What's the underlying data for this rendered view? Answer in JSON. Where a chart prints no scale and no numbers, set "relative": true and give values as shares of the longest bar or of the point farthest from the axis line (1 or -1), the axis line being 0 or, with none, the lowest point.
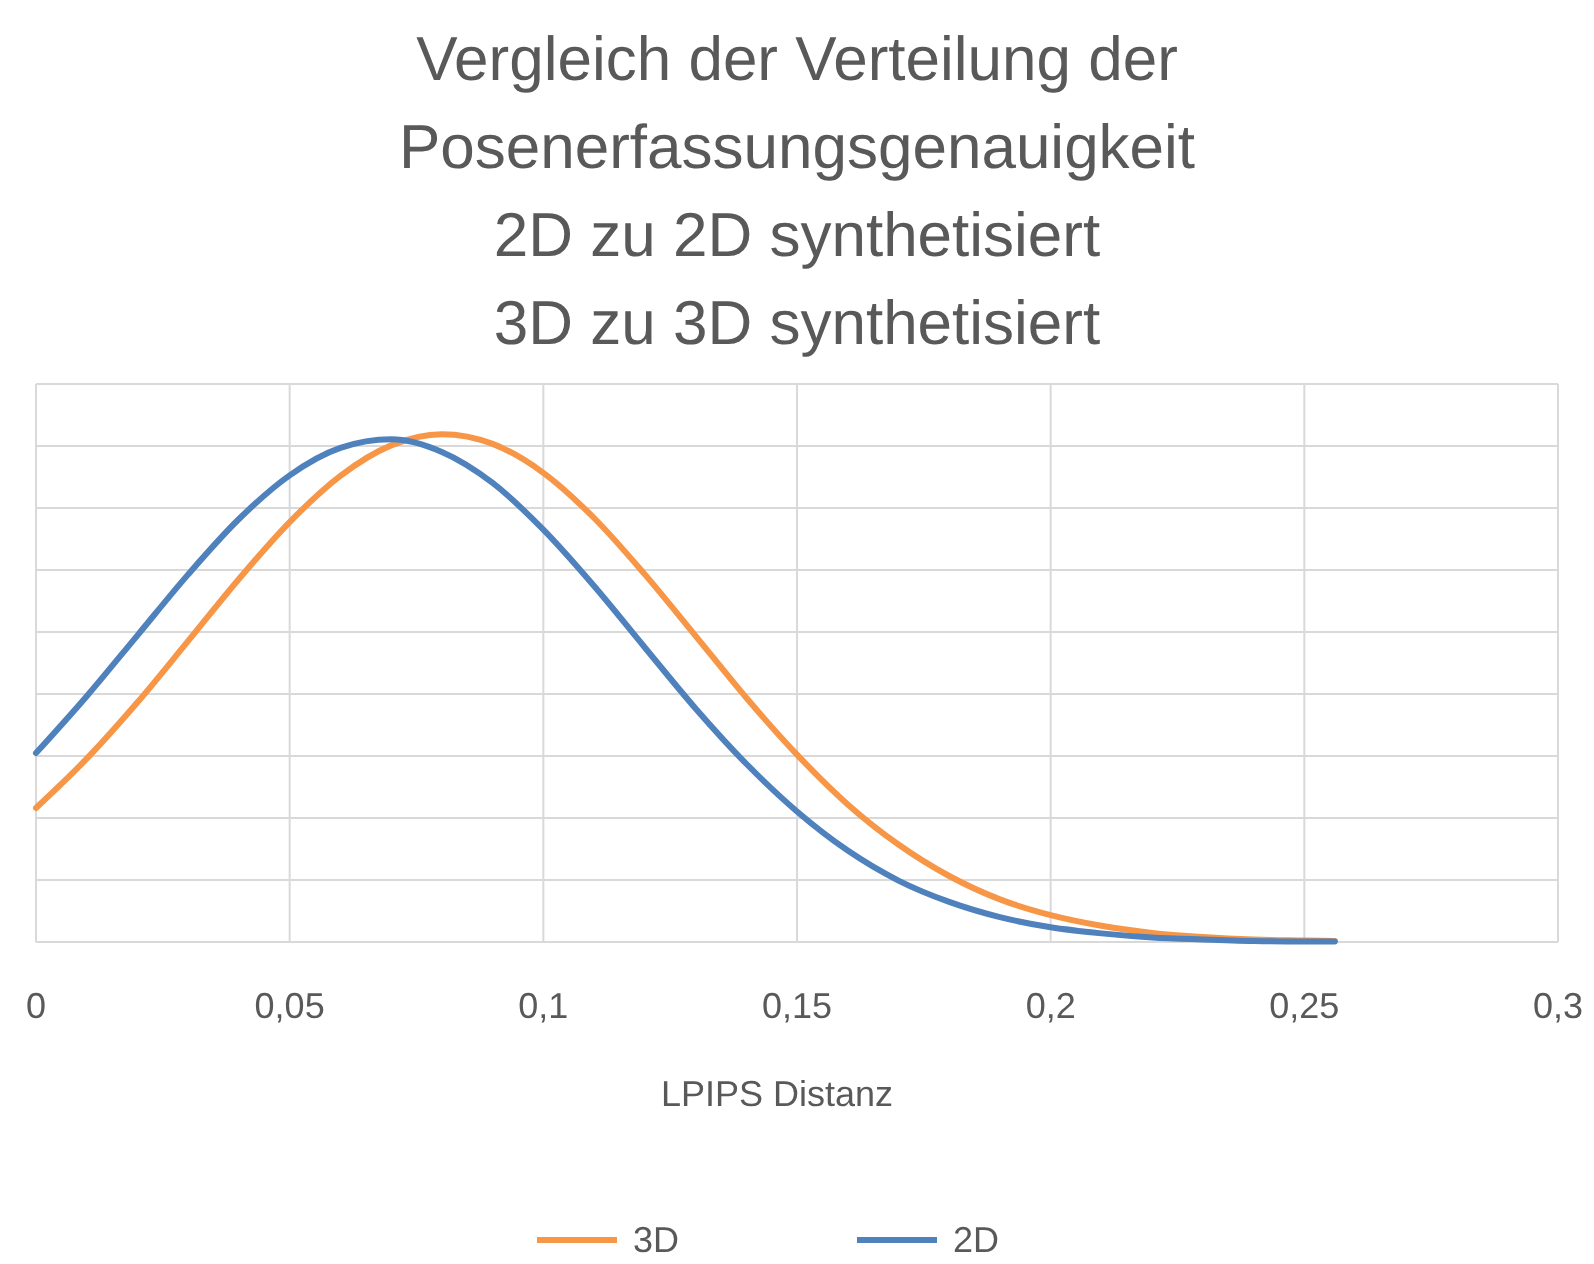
{
  "chart_data": {
    "type": "line",
    "title": "Vergleich der Verteilung der\nPosenerfassungsgenauigkeit\n2D zu 2D synthetisiert\n3D zu 3D synthetisiert",
    "xlabel": "LPIPS Distanz",
    "relative": true,
    "x": [
      0,
      0.01,
      0.02,
      0.03,
      0.04,
      0.05,
      0.06,
      0.07,
      0.08,
      0.09,
      0.1,
      0.11,
      0.12,
      0.13,
      0.14,
      0.15,
      0.16,
      0.17,
      0.18,
      0.19,
      0.2,
      0.21,
      0.22,
      0.23,
      0.24,
      0.25,
      0.256
    ],
    "series": [
      {
        "name": "3D",
        "color": "#f79646",
        "values": [
          0.264,
          0.361,
          0.472,
          0.593,
          0.715,
          0.827,
          0.918,
          0.978,
          1,
          0.981,
          0.924,
          0.835,
          0.724,
          0.603,
          0.481,
          0.369,
          0.271,
          0.192,
          0.13,
          0.084,
          0.053,
          0.032,
          0.018,
          0.01,
          0.005,
          0.003,
          0.002
        ]
      },
      {
        "name": "2D",
        "color": "#4f81bd",
        "values": [
          0.372,
          0.484,
          0.604,
          0.724,
          0.833,
          0.919,
          0.973,
          0.99,
          0.965,
          0.904,
          0.812,
          0.701,
          0.58,
          0.46,
          0.351,
          0.257,
          0.18,
          0.121,
          0.079,
          0.049,
          0.029,
          0.017,
          0.009,
          0.005,
          0.002,
          0.001,
          0.001
        ]
      }
    ],
    "xlim": [
      0,
      0.3
    ],
    "xticks": [
      {
        "value": 0,
        "label": "0"
      },
      {
        "value": 0.05,
        "label": "0,05"
      },
      {
        "value": 0.1,
        "label": "0,1"
      },
      {
        "value": 0.15,
        "label": "0,15"
      },
      {
        "value": 0.2,
        "label": "0,2"
      },
      {
        "value": 0.25,
        "label": "0,25"
      },
      {
        "value": 0.3,
        "label": "0,3"
      }
    ],
    "grid": true,
    "legend": "bottom",
    "marker": "none",
    "line_style": "solid"
  }
}
